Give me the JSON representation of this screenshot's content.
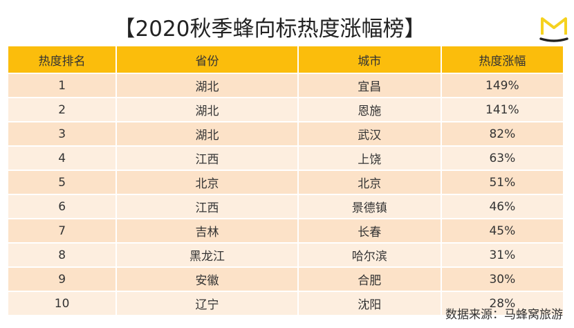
{
  "title": "【2020秋季蜂向标热度涨幅榜】",
  "colors": {
    "header": "#fbbd0c",
    "row_odd": "#fce2c8",
    "row_even": "#fdeedf",
    "logo": "#f5d21f"
  },
  "logo_icon": "mafengwo-m-logo",
  "chart_data": {
    "type": "table",
    "columns": [
      "热度排名",
      "省份",
      "城市",
      "热度涨幅"
    ],
    "rows": [
      [
        "1",
        "湖北",
        "宜昌",
        "149%"
      ],
      [
        "2",
        "湖北",
        "恩施",
        "141%"
      ],
      [
        "3",
        "湖北",
        "武汉",
        "82%"
      ],
      [
        "4",
        "江西",
        "上饶",
        "63%"
      ],
      [
        "5",
        "北京",
        "北京",
        "51%"
      ],
      [
        "6",
        "江西",
        "景德镇",
        "46%"
      ],
      [
        "7",
        "吉林",
        "长春",
        "45%"
      ],
      [
        "8",
        "黑龙江",
        "哈尔滨",
        "31%"
      ],
      [
        "9",
        "安徽",
        "合肥",
        "30%"
      ],
      [
        "10",
        "辽宁",
        "沈阳",
        "28%"
      ]
    ]
  },
  "source": "数据来源：马蜂窝旅游"
}
